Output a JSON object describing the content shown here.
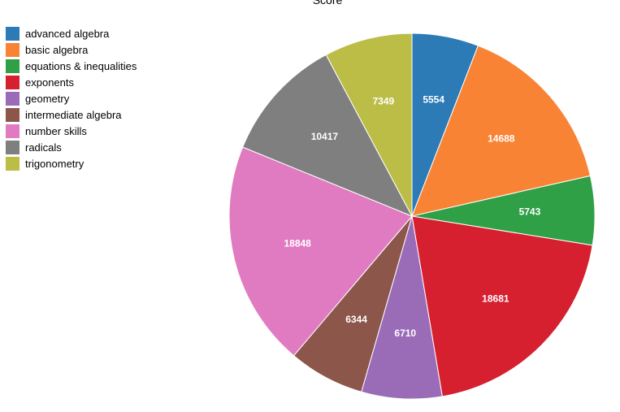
{
  "chart_data": {
    "type": "pie",
    "title": "Score",
    "legend_position": "top-left",
    "slices": [
      {
        "label": "advanced algebra",
        "value": 5554,
        "color": "#2c7bb6"
      },
      {
        "label": "basic algebra",
        "value": 14688,
        "color": "#f98335"
      },
      {
        "label": "equations & inequalities",
        "value": 5743,
        "color": "#2fa045"
      },
      {
        "label": "exponents",
        "value": 18681,
        "color": "#d62030"
      },
      {
        "label": "geometry",
        "value": 6710,
        "color": "#9a6cb7"
      },
      {
        "label": "intermediate algebra",
        "value": 6344,
        "color": "#8c564b"
      },
      {
        "label": "number skills",
        "value": 18848,
        "color": "#e07bc1"
      },
      {
        "label": "radicals",
        "value": 10417,
        "color": "#7f7f7f"
      },
      {
        "label": "trigonometry",
        "value": 7349,
        "color": "#bcbd47"
      }
    ]
  }
}
